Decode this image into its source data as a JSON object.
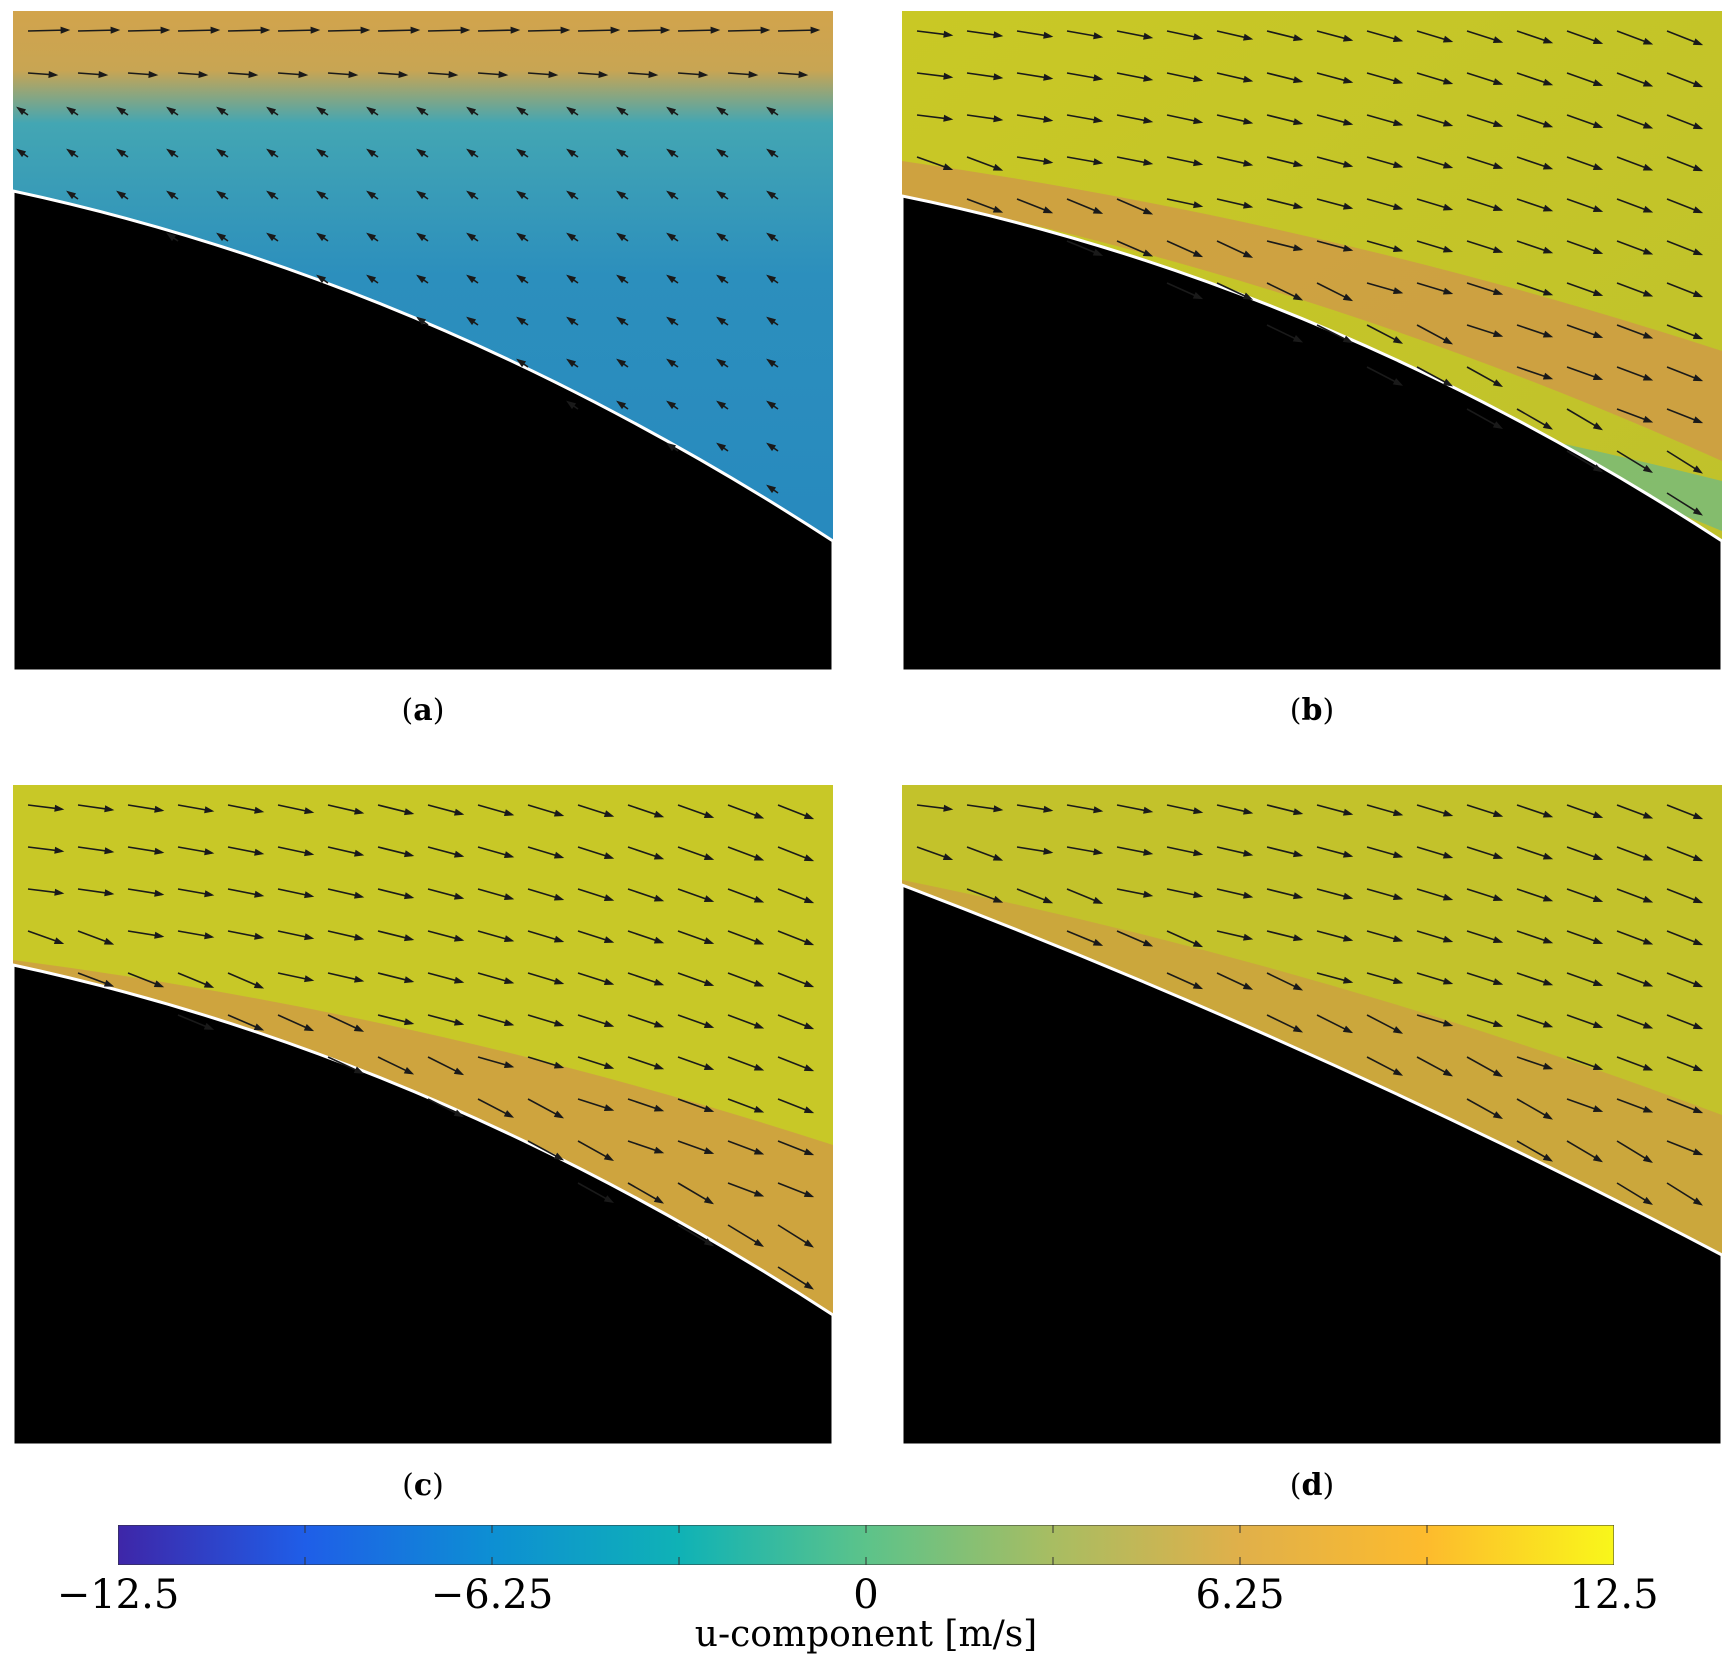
{
  "panels": [
    {
      "id": "a",
      "caption": "a",
      "background": "#2b8cb5",
      "band_color": "#d4a24a"
    },
    {
      "id": "b",
      "caption": "b",
      "background": "#c8c827",
      "band_color": "#cf9b45"
    },
    {
      "id": "c",
      "caption": "c",
      "background": "#c8c827",
      "band_color": "#cf9b45"
    },
    {
      "id": "d",
      "caption": "d",
      "background": "#c2c22a",
      "band_color": "#cf9b45"
    }
  ],
  "colorbar": {
    "label": "u-component [m/s]",
    "ticks": [
      "−12.5",
      "−6.25",
      "0",
      "6.25",
      "12.5"
    ],
    "min": -12.5,
    "max": 12.5,
    "colors": [
      "#3e26a8",
      "#1f5ee8",
      "#0d8fd3",
      "#0fb2b6",
      "#5cc38a",
      "#a8bd62",
      "#e0b04a",
      "#fdbb2d",
      "#f9f71a"
    ]
  }
}
